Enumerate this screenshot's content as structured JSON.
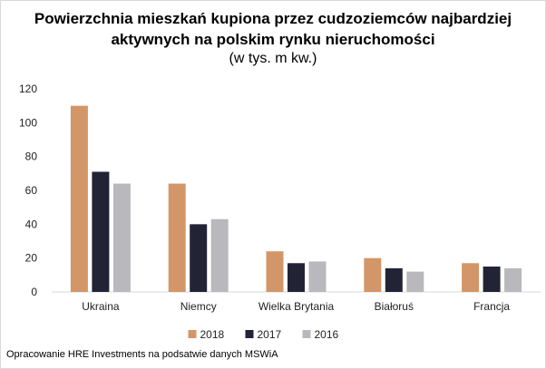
{
  "chart_data": {
    "type": "bar",
    "title": "Powierzchnia mieszkań kupiona przez cudzoziemców najbardziej aktywnych na polskim rynku nieruchomości",
    "subtitle": "(w tys. m kw.)",
    "categories": [
      "Ukraina",
      "Niemcy",
      "Wielka Brytania",
      "Białoruś",
      "Francja"
    ],
    "series": [
      {
        "name": "2018",
        "color": "#D39668",
        "values": [
          110,
          64,
          24,
          20,
          17
        ]
      },
      {
        "name": "2017",
        "color": "#222436",
        "values": [
          71,
          40,
          17,
          14,
          15
        ]
      },
      {
        "name": "2016",
        "color": "#B8B8BD",
        "values": [
          64,
          43,
          18,
          12,
          14
        ]
      }
    ],
    "yticks": [
      0,
      20,
      40,
      60,
      80,
      100,
      120
    ],
    "ylim": [
      0,
      120
    ],
    "legend": "bottom",
    "grid": false
  },
  "title_line1": "Powierzchnia mieszkań kupiona przez cudzoziemców najbardziej",
  "title_line2": "aktywnych na polskim rynku nieruchomości",
  "source": "Opracowanie HRE Investments na podsatwie danych MSWiA"
}
